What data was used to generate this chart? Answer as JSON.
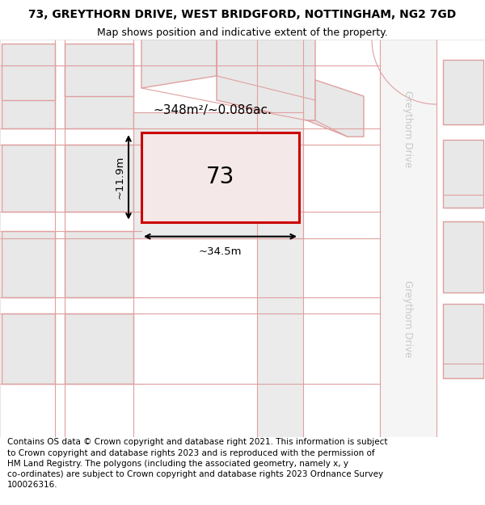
{
  "title": "73, GREYTHORN DRIVE, WEST BRIDGFORD, NOTTINGHAM, NG2 7GD",
  "subtitle": "Map shows position and indicative extent of the property.",
  "footer": "Contains OS data © Crown copyright and database right 2021. This information is subject\nto Crown copyright and database rights 2023 and is reproduced with the permission of\nHM Land Registry. The polygons (including the associated geometry, namely x, y\nco-ordinates) are subject to Crown copyright and database rights 2023 Ordnance Survey\n100026316.",
  "bg_color": "#ffffff",
  "map_bg": "#f7f7f7",
  "plot_fill": "#e8e8e8",
  "plot_edge": "#e0a0a0",
  "highlight_fill": "#f5e8e8",
  "highlight_edge": "#cc0000",
  "road_bg": "#f0f0f0",
  "street_color": "#c8c8c8",
  "area_label": "~348m²/~0.086ac.",
  "number_label": "73",
  "dim_width": "~34.5m",
  "dim_height": "~11.9m",
  "street_name": "Greythorn Drive",
  "title_fontsize": 10,
  "subtitle_fontsize": 9,
  "footer_fontsize": 7.5,
  "area_fontsize": 11,
  "number_fontsize": 20
}
